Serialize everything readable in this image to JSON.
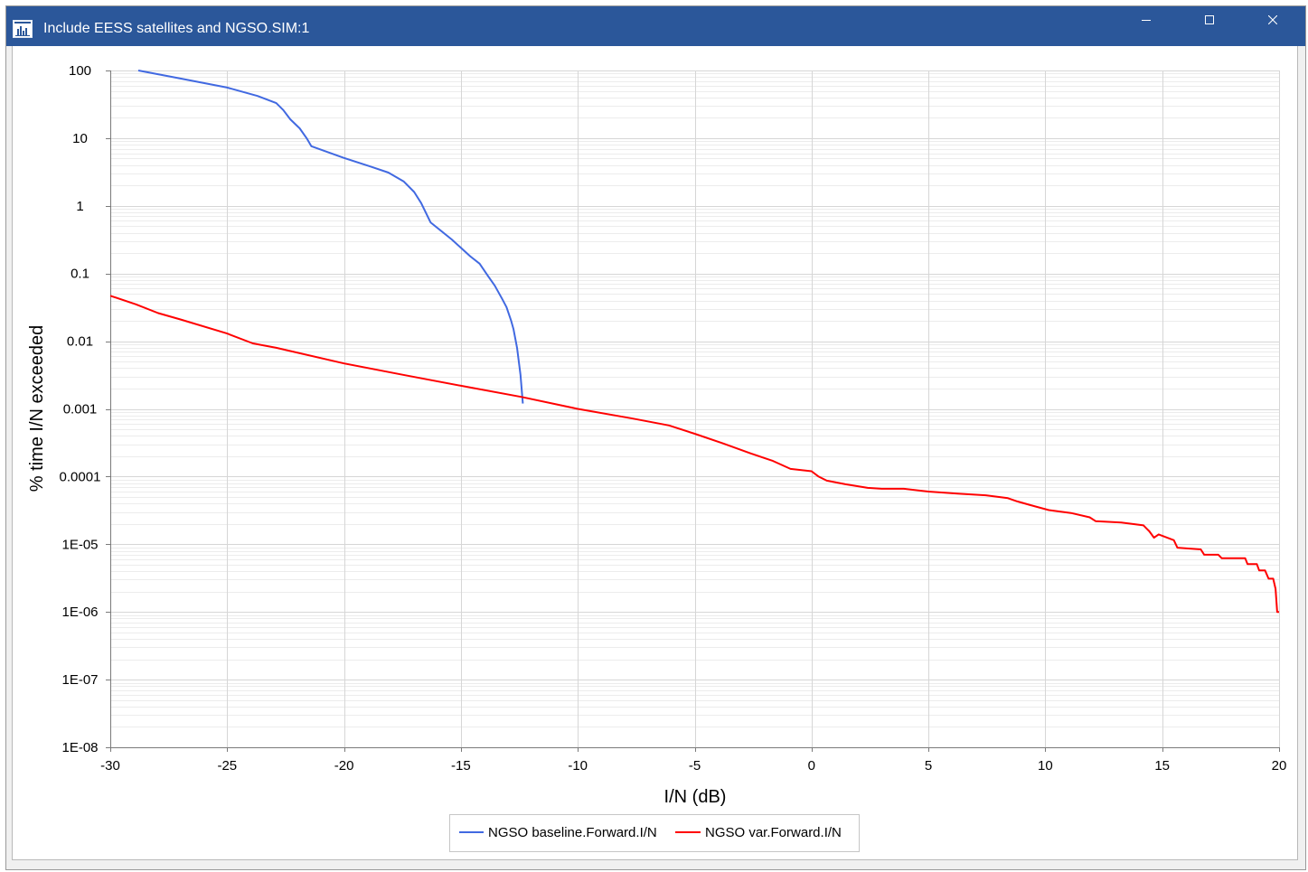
{
  "window": {
    "title": "Include EESS satellites and NGSO.SIM:1"
  },
  "colors": {
    "titlebar": "#2b579a",
    "titlebar_text": "#ffffff"
  },
  "icons": {
    "app": "chart-window-icon",
    "minimize": "minimize-icon",
    "maximize": "maximize-icon",
    "close": "close-icon"
  },
  "chart_data": {
    "type": "line",
    "xlabel": "I/N (dB)",
    "ylabel": "% time I/N exceeded",
    "xlim": [
      -30,
      20
    ],
    "ylim": [
      1e-08,
      100
    ],
    "yscale": "log",
    "x_tick_labels": [
      "-30",
      "-25",
      "-20",
      "-15",
      "-10",
      "-5",
      "0",
      "5",
      "10",
      "15",
      "20"
    ],
    "y_tick_labels": [
      "100",
      "10",
      "1",
      "0.1",
      "0.01",
      "0.001",
      "0.0001",
      "1E-05",
      "1E-06",
      "1E-07",
      "1E-08"
    ],
    "grid": {
      "x_major": true,
      "y_major": true,
      "y_minor": true
    },
    "legend_position": "bottom",
    "series": [
      {
        "name": "NGSO baseline.Forward.I/N",
        "color": "#4169e1",
        "x": [
          -28.8,
          -27.0,
          -25.0,
          -23.7,
          -22.9,
          -22.6,
          -22.3,
          -21.9,
          -21.6,
          -21.4,
          -20.0,
          -18.85,
          -18.1,
          -17.45,
          -17.0,
          -16.7,
          -16.3,
          -15.4,
          -14.6,
          -14.2,
          -13.85,
          -13.55,
          -13.25,
          -13.05,
          -12.85,
          -12.75,
          -12.6,
          -12.45,
          -12.35
        ],
        "y": [
          100,
          76,
          56,
          42,
          33,
          26,
          19,
          14,
          10,
          7.6,
          5.1,
          3.8,
          3.1,
          2.3,
          1.6,
          1.1,
          0.57,
          0.32,
          0.18,
          0.14,
          0.093,
          0.066,
          0.043,
          0.032,
          0.02,
          0.015,
          0.008,
          0.0032,
          0.0012
        ]
      },
      {
        "name": "NGSO var.Forward.I/N",
        "color": "#ff0000",
        "x": [
          -30.0,
          -28.9,
          -27.95,
          -27.0,
          -25.0,
          -23.9,
          -22.9,
          -20.0,
          -17.5,
          -15.0,
          -12.4,
          -10.0,
          -7.65,
          -6.1,
          -5.0,
          -3.8,
          -2.6,
          -1.65,
          -0.9,
          0.0,
          0.3,
          0.65,
          1.45,
          2.4,
          3.0,
          3.95,
          5.0,
          6.25,
          7.45,
          8.4,
          8.8,
          9.35,
          10.15,
          11.1,
          11.9,
          12.15,
          13.25,
          14.2,
          14.45,
          14.65,
          14.85,
          15.5,
          15.65,
          16.65,
          16.8,
          17.4,
          17.55,
          18.55,
          18.65,
          19.05,
          19.15,
          19.4,
          19.55,
          19.75,
          19.85,
          19.92,
          20.0
        ],
        "y": [
          0.047,
          0.035,
          0.026,
          0.021,
          0.013,
          0.0093,
          0.008,
          0.0047,
          0.0032,
          0.0022,
          0.0015,
          0.001,
          0.00072,
          0.00057,
          0.00043,
          0.00031,
          0.00022,
          0.00017,
          0.00013,
          0.00012,
          0.0001,
          8.7e-05,
          7.7e-05,
          6.8e-05,
          6.6e-05,
          6.6e-05,
          6e-05,
          5.6e-05,
          5.3e-05,
          4.8e-05,
          4.3e-05,
          3.8e-05,
          3.2e-05,
          2.9e-05,
          2.5e-05,
          2.2e-05,
          2.1e-05,
          1.9e-05,
          1.55e-05,
          1.25e-05,
          1.4e-05,
          1.15e-05,
          8.9e-06,
          8.4e-06,
          7e-06,
          7e-06,
          6.2e-06,
          6.2e-06,
          5.1e-06,
          5.1e-06,
          4.1e-06,
          4.1e-06,
          3.1e-06,
          3.1e-06,
          2.2e-06,
          1e-06,
          1e-06
        ]
      }
    ]
  }
}
